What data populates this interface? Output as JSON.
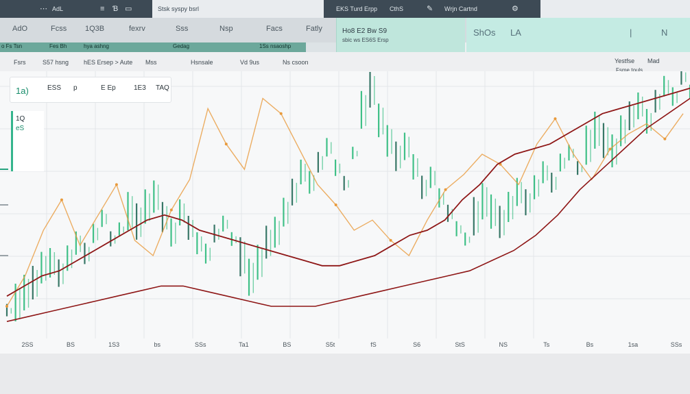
{
  "topbar": {
    "left_text": "AdL",
    "search_text": "Stsk syspy bsrl",
    "mid_text": "EKS Turd Erpp",
    "mid_text2": "CthS",
    "right_text": "Wrjn Cartnd"
  },
  "tabs": [
    "AdO",
    "Fcss",
    "1Q3B",
    "fexrv",
    "Sss",
    "Nsp",
    "Facs",
    "Fatly"
  ],
  "panel": {
    "title": "Ho8 E2 Bw S9",
    "subtitle": "sbic ws ES6S Ersp",
    "right_texts": [
      "ShOs",
      "LA",
      "|",
      "N"
    ]
  },
  "subrow": [
    "o Fs Tsn",
    "Fes Bh",
    "hya ashng",
    "Gedag",
    "1Ss nsaoshp"
  ],
  "toolbar": [
    "Fsrs",
    "S57 hsng",
    "hES Ersep > Aute",
    "Mss",
    "Hsnsale",
    "Vd 9us",
    "Ns csoon"
  ],
  "info_box": {
    "items": [
      "1a)",
      "ESS",
      "p",
      "E Ep",
      "1E3",
      "TAQ"
    ]
  },
  "left_label": {
    "line1": "1Q",
    "line2": "eS"
  },
  "legend": {
    "line1": "Yestfse",
    "line2": "Mad",
    "line3": "Fsme touls"
  },
  "colors": {
    "candle_green": "#1fb774",
    "candle_dark": "#17614e",
    "ma_red": "#8e1616",
    "line_orange": "#e89a3c",
    "teal_panel": "#bfe6dc"
  },
  "chart_data": {
    "type": "line",
    "title": "",
    "xlabel": "",
    "ylabel": "",
    "x_tick_labels": [
      "2SS",
      "BS",
      "1S3",
      "bs",
      "SSs",
      "Ta1",
      "BS",
      "S5t",
      "fS",
      "S6",
      "StS",
      "NS",
      "Ts",
      "Bs",
      "1sa",
      "SSs"
    ],
    "ylim": [
      0,
      100
    ],
    "grid": true,
    "series": [
      {
        "type": "candle-volatility",
        "values": [
          8,
          10,
          14,
          18,
          24,
          26,
          22,
          28,
          34,
          30,
          38,
          44,
          36,
          40,
          46,
          42,
          48,
          52,
          44,
          38,
          46,
          40,
          34,
          30,
          38,
          42,
          36,
          28,
          20,
          26,
          34,
          38,
          46,
          54,
          62,
          58,
          66,
          72,
          64,
          58,
          70,
          86,
          94,
          82,
          74,
          68,
          72,
          64,
          56,
          60,
          52,
          46,
          40,
          36,
          44,
          50,
          46,
          42,
          48,
          54,
          50,
          56,
          62,
          58,
          66,
          70,
          64,
          72,
          78,
          74,
          70,
          78,
          84,
          88,
          82,
          90,
          96,
          92,
          100,
          94
        ]
      },
      {
        "type": "moving-average",
        "values": [
          14,
          18,
          22,
          24,
          28,
          32,
          36,
          40,
          44,
          46,
          44,
          40,
          38,
          36,
          34,
          32,
          30,
          28,
          26,
          26,
          28,
          30,
          34,
          38,
          40,
          44,
          52,
          58,
          66,
          70,
          72,
          74,
          78,
          82,
          86,
          88,
          90,
          92,
          94,
          96
        ]
      },
      {
        "type": "moving-average-2",
        "values": [
          4,
          6,
          8,
          10,
          12,
          14,
          16,
          18,
          18,
          16,
          14,
          12,
          10,
          10,
          10,
          12,
          14,
          16,
          18,
          20,
          22,
          24,
          28,
          32,
          38,
          46,
          56,
          64,
          72,
          80,
          86,
          92
        ]
      },
      {
        "type": "orange-trend",
        "values": [
          10,
          22,
          40,
          52,
          34,
          46,
          58,
          36,
          30,
          48,
          60,
          88,
          74,
          64,
          92,
          86,
          72,
          58,
          50,
          40,
          44,
          36,
          30,
          44,
          56,
          62,
          70,
          66,
          58,
          74,
          84,
          70,
          60,
          72,
          78,
          82,
          76,
          86
        ]
      }
    ]
  }
}
